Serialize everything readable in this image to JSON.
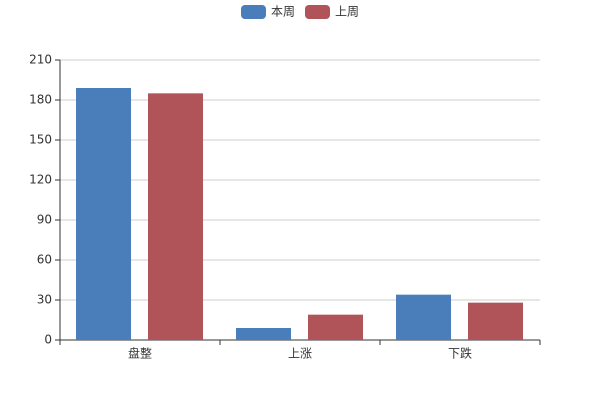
{
  "chart_data": {
    "type": "bar",
    "categories": [
      "盘整",
      "上涨",
      "下跌"
    ],
    "series": [
      {
        "name": "本周",
        "color": "#4a7ebb",
        "values": [
          189,
          9,
          34
        ]
      },
      {
        "name": "上周",
        "color": "#b0545a",
        "values": [
          185,
          19,
          28
        ]
      }
    ],
    "ylim": [
      0,
      210
    ],
    "yticks": [
      0,
      30,
      60,
      90,
      120,
      150,
      180,
      210
    ],
    "grid": true
  }
}
